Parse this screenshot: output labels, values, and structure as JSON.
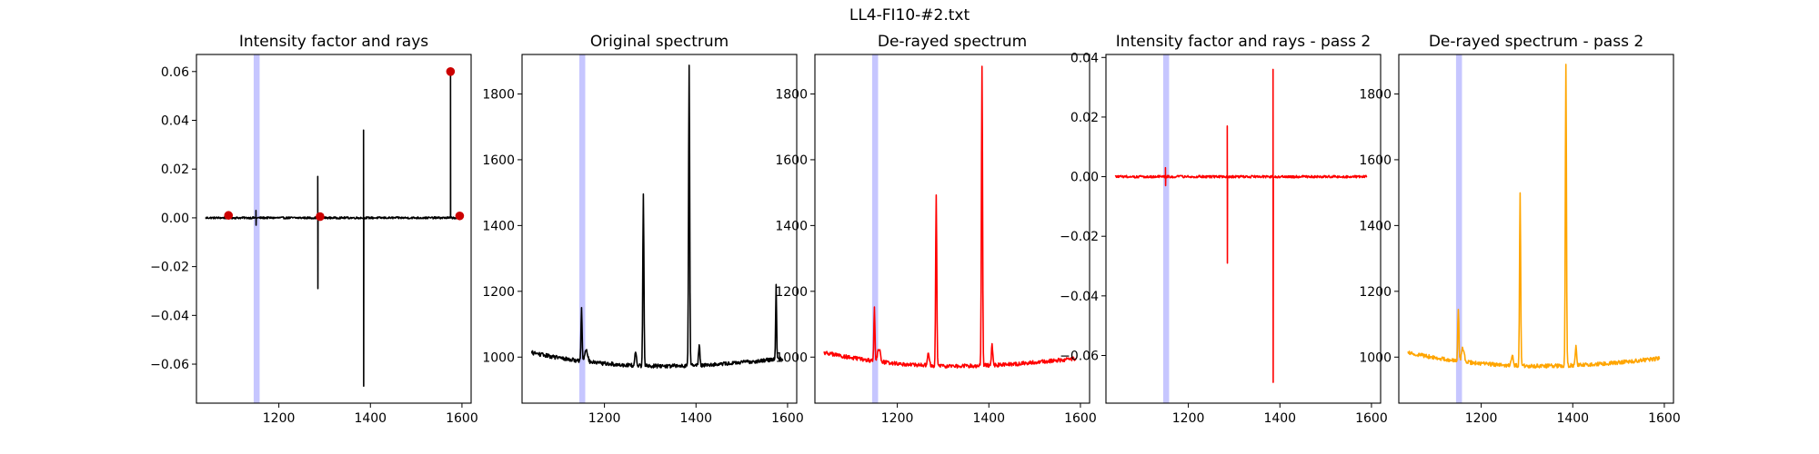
{
  "figure": {
    "suptitle": "LL4-FI10-#2.txt"
  },
  "chart_data": [
    {
      "type": "line",
      "title": "Intensity factor and rays",
      "xlim": [
        1020,
        1620
      ],
      "ylim": [
        -0.076,
        0.067
      ],
      "xticks": [
        1200,
        1400,
        1600
      ],
      "yticks": [
        -0.06,
        -0.04,
        -0.02,
        0.0,
        0.02,
        0.04,
        0.06
      ],
      "ytick_format": "fixed2",
      "highlight_band": {
        "x0": 1145,
        "x1": 1158,
        "color": "#8080ff"
      },
      "series": [
        {
          "color": "#000000",
          "baseline": 0.0,
          "noise": 0.0004,
          "spikes": [
            {
              "x": 1150,
              "low": -0.003,
              "high": 0.003
            },
            {
              "x": 1285,
              "low": -0.029,
              "high": 0.017
            },
            {
              "x": 1385,
              "low": -0.069,
              "high": 0.036
            },
            {
              "x": 1575,
              "low": 0.0,
              "high": 0.06
            }
          ]
        }
      ],
      "markers": {
        "color": "#cc0000",
        "points": [
          [
            1090,
            0.001
          ],
          [
            1290,
            0.0005
          ],
          [
            1575,
            0.06
          ],
          [
            1595,
            0.0008
          ]
        ]
      }
    },
    {
      "type": "line",
      "title": "Original spectrum",
      "xlim": [
        1020,
        1620
      ],
      "ylim": [
        860,
        1920
      ],
      "xticks": [
        1200,
        1400,
        1600
      ],
      "yticks": [
        1000,
        1200,
        1400,
        1600,
        1800
      ],
      "ytick_format": "int",
      "highlight_band": {
        "x0": 1145,
        "x1": 1158,
        "color": "#8080ff"
      },
      "series": [
        {
          "color": "#000000",
          "start": [
            1040,
            1095
          ],
          "end": [
            1590,
            915
          ],
          "curve": 0.6,
          "noise": 6,
          "peaks": [
            {
              "x": 1150,
              "height": 160,
              "width": 1.2
            },
            {
              "x": 1160,
              "height": 40,
              "width": 3
            },
            {
              "x": 1268,
              "height": 35,
              "width": 2
            },
            {
              "x": 1285,
              "height": 520,
              "width": 1.2
            },
            {
              "x": 1385,
              "height": 910,
              "width": 1.2
            },
            {
              "x": 1407,
              "height": 60,
              "width": 1.5
            },
            {
              "x": 1575,
              "height": 230,
              "width": 1.0
            }
          ]
        }
      ]
    },
    {
      "type": "line",
      "title": "De-rayed spectrum",
      "xlim": [
        1020,
        1620
      ],
      "ylim": [
        860,
        1920
      ],
      "xticks": [
        1200,
        1400,
        1600
      ],
      "yticks": [
        1000,
        1200,
        1400,
        1600,
        1800
      ],
      "ytick_format": "int",
      "highlight_band": {
        "x0": 1145,
        "x1": 1158,
        "color": "#8080ff"
      },
      "series": [
        {
          "color": "#ff0000",
          "start": [
            1040,
            1095
          ],
          "end": [
            1590,
            915
          ],
          "curve": 0.6,
          "noise": 6,
          "peaks": [
            {
              "x": 1150,
              "height": 160,
              "width": 1.2
            },
            {
              "x": 1160,
              "height": 40,
              "width": 3
            },
            {
              "x": 1268,
              "height": 35,
              "width": 2
            },
            {
              "x": 1285,
              "height": 520,
              "width": 1.2
            },
            {
              "x": 1385,
              "height": 910,
              "width": 1.2
            },
            {
              "x": 1407,
              "height": 60,
              "width": 1.5
            }
          ]
        }
      ]
    },
    {
      "type": "line",
      "title": "Intensity factor and rays - pass 2",
      "xlim": [
        1020,
        1620
      ],
      "ylim": [
        -0.076,
        0.041
      ],
      "xticks": [
        1200,
        1400,
        1600
      ],
      "yticks": [
        -0.06,
        -0.04,
        -0.02,
        0.0,
        0.02,
        0.04
      ],
      "ytick_format": "fixed2",
      "highlight_band": {
        "x0": 1145,
        "x1": 1158,
        "color": "#8080ff"
      },
      "series": [
        {
          "color": "#ff0000",
          "baseline": 0.0,
          "noise": 0.0004,
          "spikes": [
            {
              "x": 1150,
              "low": -0.003,
              "high": 0.003
            },
            {
              "x": 1285,
              "low": -0.029,
              "high": 0.017
            },
            {
              "x": 1385,
              "low": -0.069,
              "high": 0.036
            }
          ]
        }
      ]
    },
    {
      "type": "line",
      "title": "De-rayed spectrum - pass 2",
      "xlim": [
        1020,
        1620
      ],
      "ylim": [
        860,
        1920
      ],
      "xticks": [
        1200,
        1400,
        1600
      ],
      "yticks": [
        1000,
        1200,
        1400,
        1600,
        1800
      ],
      "ytick_format": "int",
      "highlight_band": {
        "x0": 1145,
        "x1": 1158,
        "color": "#8080ff"
      },
      "series": [
        {
          "color": "#ffa500",
          "start": [
            1040,
            1095
          ],
          "end": [
            1590,
            915
          ],
          "curve": 0.6,
          "noise": 6,
          "peaks": [
            {
              "x": 1150,
              "height": 160,
              "width": 1.2
            },
            {
              "x": 1160,
              "height": 40,
              "width": 3
            },
            {
              "x": 1268,
              "height": 35,
              "width": 2
            },
            {
              "x": 1285,
              "height": 520,
              "width": 1.2
            },
            {
              "x": 1385,
              "height": 910,
              "width": 1.2
            },
            {
              "x": 1407,
              "height": 60,
              "width": 1.5
            }
          ]
        }
      ]
    }
  ]
}
